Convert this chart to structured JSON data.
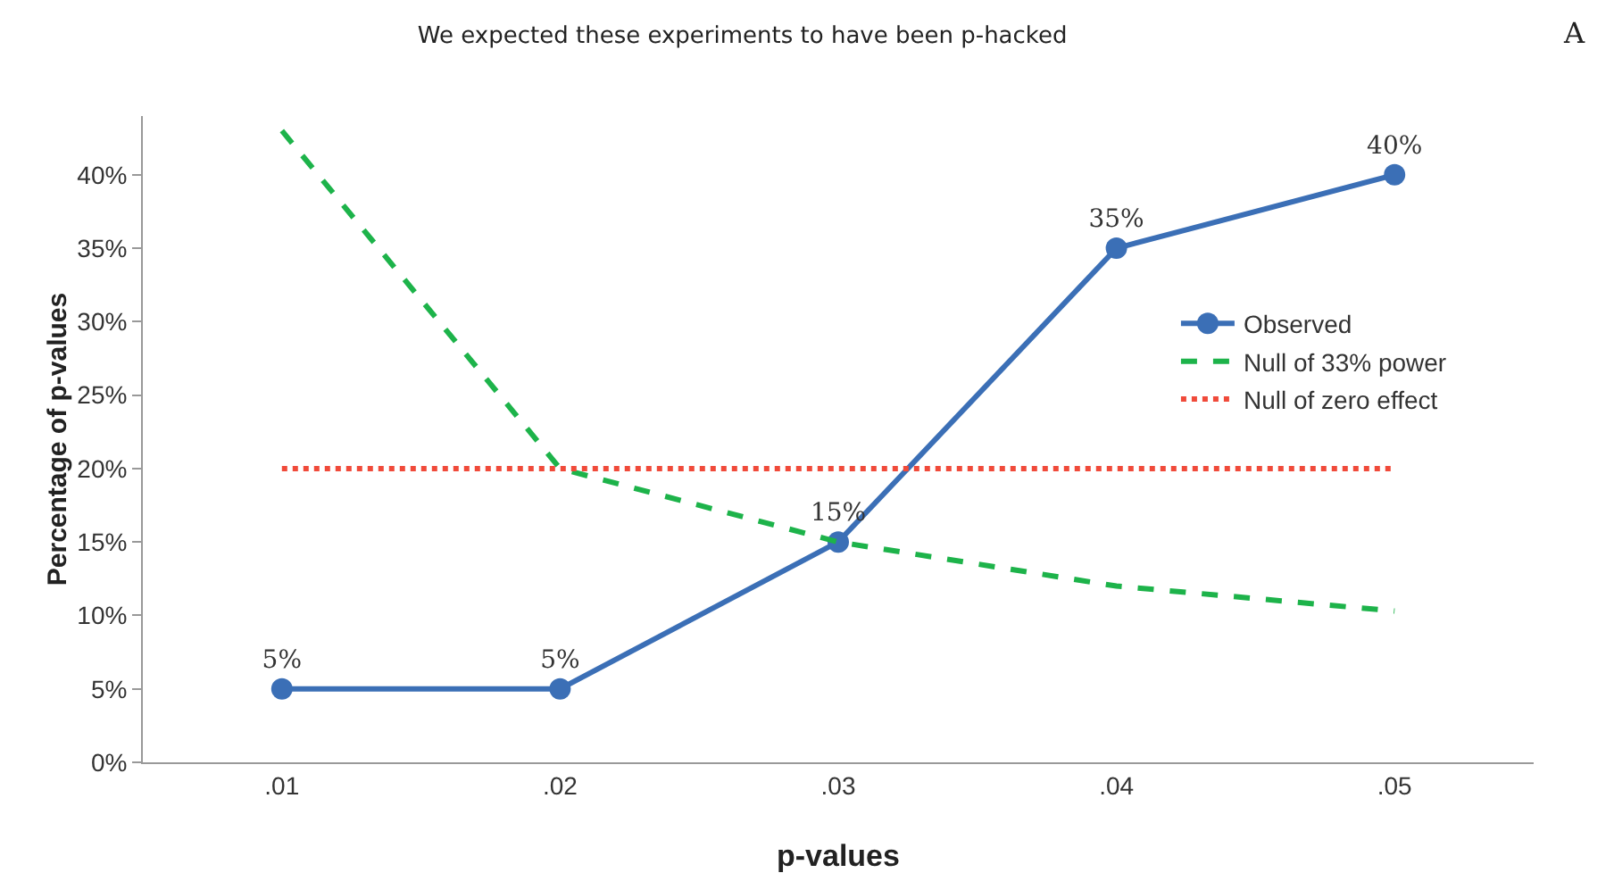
{
  "chart_data": {
    "type": "line",
    "title": "We expected these experiments to have been p-hacked",
    "xlabel": "p-values",
    "ylabel": "Percentage of p-values",
    "categories": [
      ".01",
      ".02",
      ".03",
      ".04",
      ".05"
    ],
    "series": [
      {
        "name": "Observed",
        "color": "#3b6fb6",
        "values": [
          5,
          5,
          15,
          35,
          40
        ],
        "marker": "circle",
        "line_style": "solid",
        "value_labels": [
          "5%",
          "5%",
          "15%",
          "35%",
          "40%"
        ]
      },
      {
        "name": "Null of 33% power",
        "color": "#1db34a",
        "values": [
          43,
          20,
          15,
          12,
          10.3
        ],
        "marker": "none",
        "line_style": "dashed"
      },
      {
        "name": "Null of zero effect",
        "color": "#f04a3a",
        "values": [
          20,
          20,
          20,
          20,
          20
        ],
        "marker": "none",
        "line_style": "dotted"
      }
    ],
    "ylim": [
      0,
      44
    ],
    "yticks": [
      {
        "value": 0,
        "label": "0%"
      },
      {
        "value": 5,
        "label": "5%"
      },
      {
        "value": 10,
        "label": "10%"
      },
      {
        "value": 15,
        "label": "15%"
      },
      {
        "value": 20,
        "label": "20%"
      },
      {
        "value": 25,
        "label": "25%"
      },
      {
        "value": 30,
        "label": "30%"
      },
      {
        "value": 35,
        "label": "35%"
      },
      {
        "value": 40,
        "label": "40%"
      }
    ],
    "grid": false,
    "legend": "right",
    "annotations": [
      "A"
    ]
  }
}
